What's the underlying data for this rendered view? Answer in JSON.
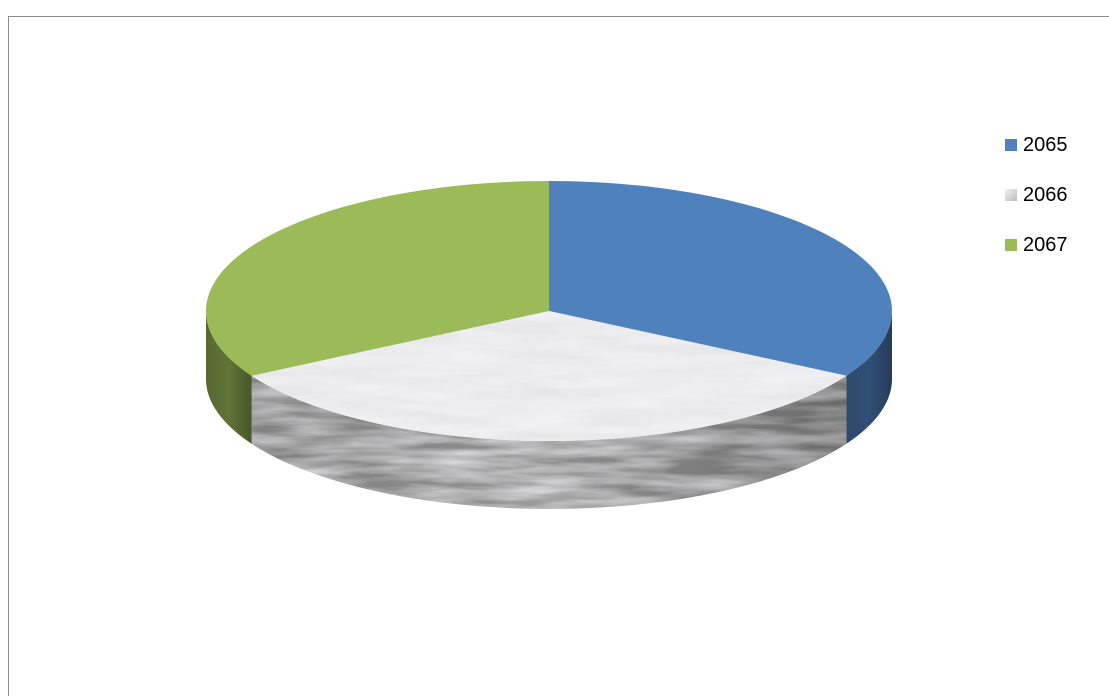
{
  "chart_data": {
    "type": "pie",
    "categories": [
      "2065",
      "2066",
      "2067"
    ],
    "values": [
      33.3,
      33.4,
      33.3
    ],
    "colors": [
      "#4f81bd",
      "#d9d9d9",
      "#9bbb59"
    ],
    "style": "3d",
    "legend": {
      "position": "right",
      "entries": [
        "2065",
        "2066",
        "2067"
      ]
    }
  }
}
